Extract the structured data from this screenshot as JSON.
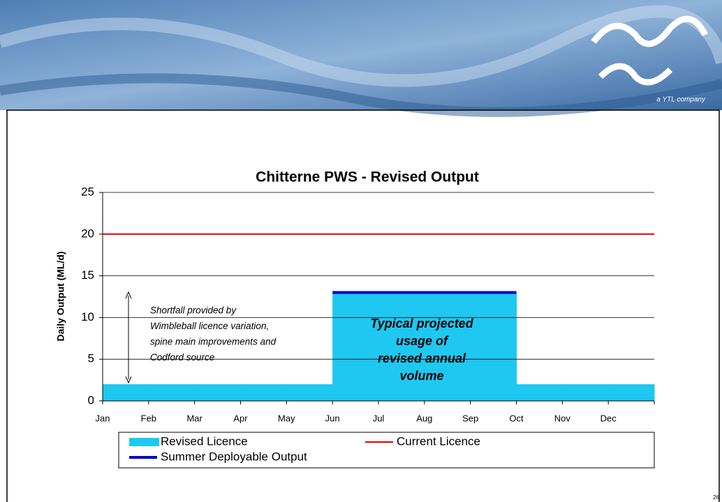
{
  "logo_tagline": "a YTL company",
  "slide_number": "26",
  "chart_data": {
    "type": "line",
    "title": "Chitterne PWS - Revised Output",
    "y_label": "Daily Output (ML/d)",
    "categories": [
      "Jan",
      "Feb",
      "Mar",
      "Apr",
      "May",
      "Jun",
      "Jul",
      "Aug",
      "Sep",
      "Oct",
      "Nov",
      "Dec",
      null
    ],
    "series": [
      {
        "name": "Revised Licence",
        "kind": "area",
        "color": "#1ec8f0",
        "values": [
          2,
          2,
          2,
          2,
          2,
          13,
          13,
          13,
          13,
          2,
          2,
          2,
          null
        ]
      },
      {
        "name": "Current Licence",
        "kind": "line",
        "color": "#e00000",
        "values": [
          20,
          20,
          20,
          20,
          20,
          20,
          20,
          20,
          20,
          20,
          20,
          20,
          20
        ]
      },
      {
        "name": "Summer Deployable Output",
        "kind": "line",
        "color": "#0000cc",
        "values": [
          null,
          null,
          null,
          null,
          null,
          13,
          13,
          13,
          13,
          13,
          null,
          null,
          null
        ]
      }
    ],
    "ylim": [
      0,
      25
    ],
    "yticks": [
      0,
      5,
      10,
      15,
      20,
      25
    ],
    "grid": true,
    "annotations": [
      [
        "Shortfall provided by",
        "Wimbleball licence variation,",
        "spine main improvements and",
        "Codford source"
      ],
      [
        "Typical projected",
        "usage of",
        "revised annual",
        "volume"
      ]
    ]
  }
}
